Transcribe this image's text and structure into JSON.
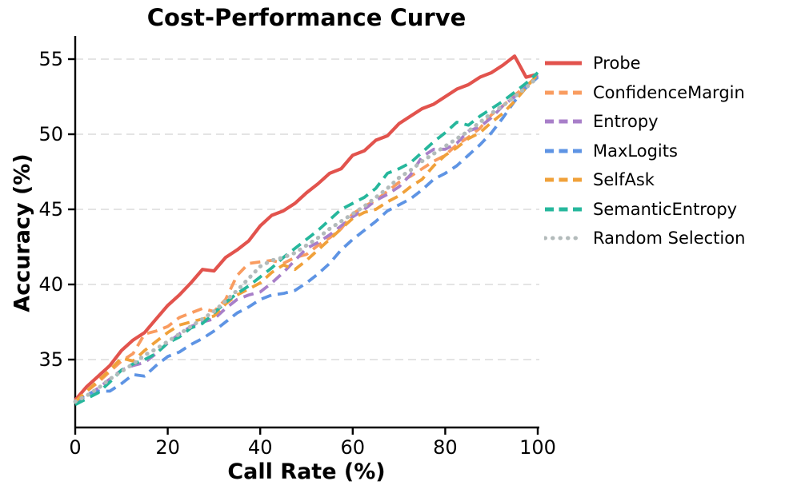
{
  "chart_data": {
    "type": "line",
    "title": "Cost-Performance Curve",
    "xlabel": "Call Rate (%)",
    "ylabel": "Accuracy (%)",
    "xlim": [
      0,
      100
    ],
    "ylim": [
      30.5,
      56.5
    ],
    "x_ticks": [
      0,
      20,
      40,
      60,
      80,
      100
    ],
    "y_ticks": [
      35,
      40,
      45,
      50,
      55
    ],
    "grid": "horizontal-dashed",
    "grid_color": "#dcdcdc",
    "axis_color": "#000000",
    "legend_position": "right-outside",
    "x": [
      0,
      2.5,
      5,
      7.5,
      10,
      12.5,
      15,
      17.5,
      20,
      22.5,
      25,
      27.5,
      30,
      32.5,
      35,
      37.5,
      40,
      42.5,
      45,
      47.5,
      50,
      52.5,
      55,
      57.5,
      60,
      62.5,
      65,
      67.5,
      70,
      72.5,
      75,
      77.5,
      80,
      82.5,
      85,
      87.5,
      90,
      92.5,
      95,
      97.5,
      100
    ],
    "series": [
      {
        "name": "Probe",
        "color": "#e2534d",
        "style": "solid",
        "values": [
          32.3,
          33.2,
          33.9,
          34.6,
          35.6,
          36.3,
          36.8,
          37.7,
          38.6,
          39.3,
          40.1,
          41.0,
          40.9,
          41.8,
          42.3,
          42.9,
          43.9,
          44.6,
          44.9,
          45.4,
          46.1,
          46.7,
          47.4,
          47.7,
          48.6,
          48.9,
          49.6,
          49.9,
          50.7,
          51.2,
          51.7,
          52.0,
          52.5,
          53.0,
          53.3,
          53.8,
          54.1,
          54.6,
          55.2,
          53.8,
          54.0
        ]
      },
      {
        "name": "ConfidenceMargin",
        "color": "#f99c60",
        "style": "dashed",
        "values": [
          32.2,
          32.9,
          33.5,
          34.2,
          34.9,
          35.4,
          36.7,
          36.9,
          37.2,
          37.8,
          38.1,
          38.4,
          38.2,
          39.0,
          40.6,
          41.4,
          41.5,
          41.6,
          41.4,
          41.8,
          42.0,
          42.6,
          43.1,
          43.7,
          44.7,
          45.2,
          45.6,
          46.2,
          46.8,
          47.2,
          47.7,
          48.2,
          48.6,
          49.3,
          49.8,
          50.4,
          51.3,
          51.9,
          52.6,
          53.2,
          53.9
        ]
      },
      {
        "name": "Entropy",
        "color": "#a87fc9",
        "style": "dashed",
        "values": [
          32.1,
          32.6,
          33.1,
          33.7,
          34.3,
          34.6,
          34.8,
          35.4,
          36.1,
          36.7,
          37.2,
          37.5,
          37.7,
          38.4,
          39.0,
          39.3,
          39.5,
          40.1,
          40.8,
          41.6,
          42.4,
          42.8,
          43.3,
          43.9,
          44.5,
          45.0,
          45.6,
          46.0,
          46.5,
          47.3,
          48.5,
          49.0,
          49.0,
          49.4,
          50.2,
          50.5,
          51.1,
          51.9,
          52.5,
          53.2,
          53.9
        ]
      },
      {
        "name": "MaxLogits",
        "color": "#5e94e4",
        "style": "dashed",
        "values": [
          32.2,
          32.7,
          32.9,
          32.9,
          33.4,
          34.0,
          33.9,
          34.6,
          35.2,
          35.5,
          36.0,
          36.4,
          36.9,
          37.5,
          38.1,
          38.5,
          39.0,
          39.3,
          39.4,
          39.6,
          40.1,
          40.7,
          41.4,
          42.3,
          43.0,
          43.6,
          44.2,
          44.9,
          45.3,
          45.7,
          46.3,
          47.0,
          47.4,
          47.9,
          48.6,
          49.3,
          50.1,
          51.1,
          52.2,
          53.1,
          53.8
        ]
      },
      {
        "name": "SelfAsk",
        "color": "#f0a13a",
        "style": "dashed",
        "values": [
          32.2,
          32.9,
          33.6,
          34.3,
          35.1,
          34.9,
          35.6,
          36.2,
          36.8,
          37.3,
          37.5,
          37.7,
          37.9,
          38.7,
          39.3,
          39.7,
          40.1,
          40.8,
          41.3,
          41.0,
          41.6,
          42.3,
          43.0,
          43.7,
          44.4,
          44.8,
          45.0,
          45.5,
          45.9,
          46.5,
          47.0,
          47.9,
          48.6,
          49.1,
          49.7,
          50.1,
          50.8,
          51.4,
          52.2,
          53.1,
          54.0
        ]
      },
      {
        "name": "SemanticEntropy",
        "color": "#26b79c",
        "style": "dashed",
        "values": [
          32.0,
          32.4,
          32.8,
          33.5,
          34.3,
          34.7,
          35.0,
          35.4,
          36.1,
          36.5,
          37.1,
          37.4,
          38.1,
          38.8,
          39.4,
          39.9,
          40.5,
          41.1,
          41.8,
          42.4,
          43.0,
          43.6,
          44.3,
          45.0,
          45.4,
          45.8,
          46.4,
          47.4,
          47.7,
          48.1,
          48.8,
          49.5,
          50.1,
          50.8,
          50.6,
          51.2,
          51.7,
          52.2,
          52.8,
          53.4,
          54.1
        ]
      },
      {
        "name": "Random Selection",
        "color": "#b3bbbb",
        "style": "dotted",
        "values": [
          32.2,
          32.6,
          33.1,
          33.7,
          34.2,
          34.7,
          35.3,
          35.7,
          36.2,
          36.7,
          37.2,
          37.7,
          38.2,
          38.9,
          39.6,
          40.4,
          41.2,
          41.6,
          41.8,
          42.1,
          42.6,
          43.1,
          43.7,
          44.2,
          44.7,
          45.2,
          45.8,
          46.4,
          47.1,
          47.6,
          48.2,
          48.7,
          49.2,
          49.7,
          50.2,
          50.8,
          51.4,
          51.9,
          52.5,
          53.1,
          53.8
        ]
      }
    ]
  }
}
